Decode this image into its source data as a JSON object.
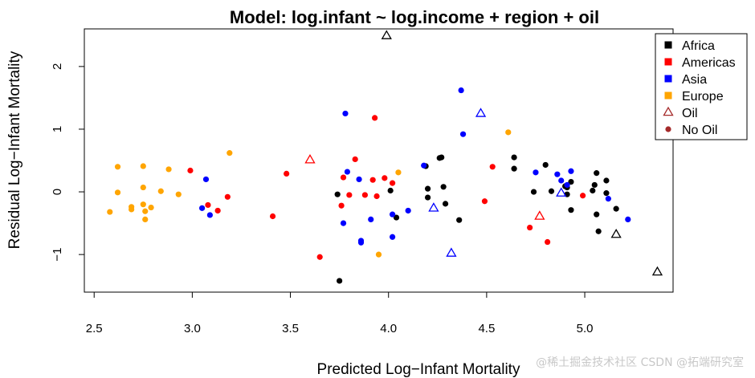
{
  "chart_data": {
    "type": "scatter",
    "title": "Model: log.infant ~ log.income + region + oil",
    "xlabel": "Predicted Log−Infant Mortality",
    "ylabel": "Residual Log−Infant Mortality",
    "xlim": [
      2.45,
      5.45
    ],
    "ylim": [
      -1.6,
      2.6
    ],
    "xticks": [
      {
        "value": 2.5,
        "label": "2.5"
      },
      {
        "value": 3.0,
        "label": "3.0"
      },
      {
        "value": 3.5,
        "label": "3.5"
      },
      {
        "value": 4.0,
        "label": "4.0"
      },
      {
        "value": 4.5,
        "label": "4.5"
      },
      {
        "value": 5.0,
        "label": "5.0"
      }
    ],
    "yticks": [
      {
        "value": -1,
        "label": "−1"
      },
      {
        "value": 0,
        "label": "0"
      },
      {
        "value": 1,
        "label": "1"
      },
      {
        "value": 2,
        "label": "2"
      }
    ],
    "grid": false,
    "legend_position": "top-right",
    "legend": [
      {
        "label": "Africa",
        "shape": "square",
        "color": "#000000"
      },
      {
        "label": "Americas",
        "shape": "square",
        "color": "#ff0000"
      },
      {
        "label": "Asia",
        "shape": "square",
        "color": "#0000ff"
      },
      {
        "label": "Europe",
        "shape": "square",
        "color": "#ffa500"
      },
      {
        "label": "Oil",
        "shape": "open-triangle",
        "color": "#a52a2a"
      },
      {
        "label": "No Oil",
        "shape": "circle",
        "color": "#a52a2a"
      }
    ],
    "series": [
      {
        "name": "Africa",
        "color": "#000000",
        "marker": "circle",
        "points": [
          [
            3.74,
            -0.04
          ],
          [
            3.75,
            -1.42
          ],
          [
            4.01,
            0.02
          ],
          [
            4.04,
            -0.41
          ],
          [
            4.19,
            0.41
          ],
          [
            4.2,
            0.05
          ],
          [
            4.2,
            -0.09
          ],
          [
            4.26,
            0.54
          ],
          [
            4.27,
            0.55
          ],
          [
            4.28,
            0.08
          ],
          [
            4.29,
            -0.19
          ],
          [
            4.36,
            -0.45
          ],
          [
            4.64,
            0.55
          ],
          [
            4.64,
            0.37
          ],
          [
            4.74,
            0.0
          ],
          [
            4.8,
            0.43
          ],
          [
            4.83,
            0.01
          ],
          [
            4.9,
            0.09
          ],
          [
            4.91,
            0.07
          ],
          [
            4.91,
            -0.04
          ],
          [
            4.93,
            -0.29
          ],
          [
            4.93,
            0.16
          ],
          [
            5.04,
            0.02
          ],
          [
            5.05,
            0.11
          ],
          [
            5.06,
            0.3
          ],
          [
            5.06,
            -0.36
          ],
          [
            5.07,
            -0.63
          ],
          [
            5.11,
            0.18
          ],
          [
            5.11,
            -0.02
          ],
          [
            5.16,
            -0.27
          ]
        ]
      },
      {
        "name": "Americas",
        "color": "#ff0000",
        "marker": "circle",
        "points": [
          [
            2.99,
            0.34
          ],
          [
            3.08,
            -0.21
          ],
          [
            3.13,
            -0.3
          ],
          [
            3.18,
            -0.08
          ],
          [
            3.41,
            -0.39
          ],
          [
            3.48,
            0.29
          ],
          [
            3.65,
            -1.04
          ],
          [
            3.76,
            -0.22
          ],
          [
            3.77,
            0.23
          ],
          [
            3.8,
            -0.05
          ],
          [
            3.83,
            0.52
          ],
          [
            3.88,
            -0.05
          ],
          [
            3.92,
            0.19
          ],
          [
            3.93,
            1.18
          ],
          [
            3.94,
            -0.07
          ],
          [
            3.98,
            0.22
          ],
          [
            4.02,
            0.14
          ],
          [
            4.49,
            -0.15
          ],
          [
            4.53,
            0.4
          ],
          [
            4.72,
            -0.57
          ],
          [
            4.81,
            -0.8
          ],
          [
            4.99,
            -0.06
          ]
        ]
      },
      {
        "name": "Asia",
        "color": "#0000ff",
        "marker": "circle",
        "points": [
          [
            3.05,
            -0.26
          ],
          [
            3.07,
            0.2
          ],
          [
            3.09,
            -0.37
          ],
          [
            3.77,
            -0.5
          ],
          [
            3.78,
            1.25
          ],
          [
            3.79,
            0.32
          ],
          [
            3.85,
            0.2
          ],
          [
            3.86,
            -0.78
          ],
          [
            3.86,
            -0.81
          ],
          [
            3.91,
            -0.44
          ],
          [
            4.02,
            -0.36
          ],
          [
            4.02,
            -0.72
          ],
          [
            4.1,
            -0.3
          ],
          [
            4.18,
            0.42
          ],
          [
            4.37,
            1.62
          ],
          [
            4.38,
            0.92
          ],
          [
            4.75,
            0.31
          ],
          [
            4.86,
            0.28
          ],
          [
            4.88,
            0.18
          ],
          [
            4.91,
            0.11
          ],
          [
            4.93,
            0.33
          ],
          [
            5.12,
            -0.11
          ],
          [
            5.22,
            -0.44
          ]
        ]
      },
      {
        "name": "Europe",
        "color": "#ffa500",
        "marker": "circle",
        "points": [
          [
            2.58,
            -0.32
          ],
          [
            2.62,
            0.4
          ],
          [
            2.62,
            -0.01
          ],
          [
            2.69,
            -0.24
          ],
          [
            2.69,
            -0.28
          ],
          [
            2.75,
            0.41
          ],
          [
            2.75,
            0.07
          ],
          [
            2.75,
            -0.2
          ],
          [
            2.76,
            -0.31
          ],
          [
            2.76,
            -0.44
          ],
          [
            2.79,
            -0.25
          ],
          [
            2.84,
            0.01
          ],
          [
            2.88,
            0.36
          ],
          [
            2.93,
            -0.04
          ],
          [
            3.19,
            0.62
          ],
          [
            3.95,
            -1.0
          ],
          [
            4.05,
            0.31
          ],
          [
            4.61,
            0.95
          ]
        ]
      },
      {
        "name": "Oil",
        "marker": "open-triangle",
        "points": [
          {
            "x": 3.99,
            "y": 2.49,
            "color": "#000000"
          },
          {
            "x": 3.6,
            "y": 0.51,
            "color": "#ff0000"
          },
          {
            "x": 4.23,
            "y": -0.26,
            "color": "#0000ff"
          },
          {
            "x": 4.32,
            "y": -0.98,
            "color": "#0000ff"
          },
          {
            "x": 4.47,
            "y": 1.25,
            "color": "#0000ff"
          },
          {
            "x": 4.77,
            "y": -0.39,
            "color": "#ff0000"
          },
          {
            "x": 4.88,
            "y": -0.02,
            "color": "#0000ff"
          },
          {
            "x": 5.16,
            "y": -0.68,
            "color": "#000000"
          },
          {
            "x": 5.37,
            "y": -1.28,
            "color": "#000000"
          }
        ]
      }
    ]
  },
  "watermark": "@稀土掘金技术社区  CSDN @拓端研究室"
}
